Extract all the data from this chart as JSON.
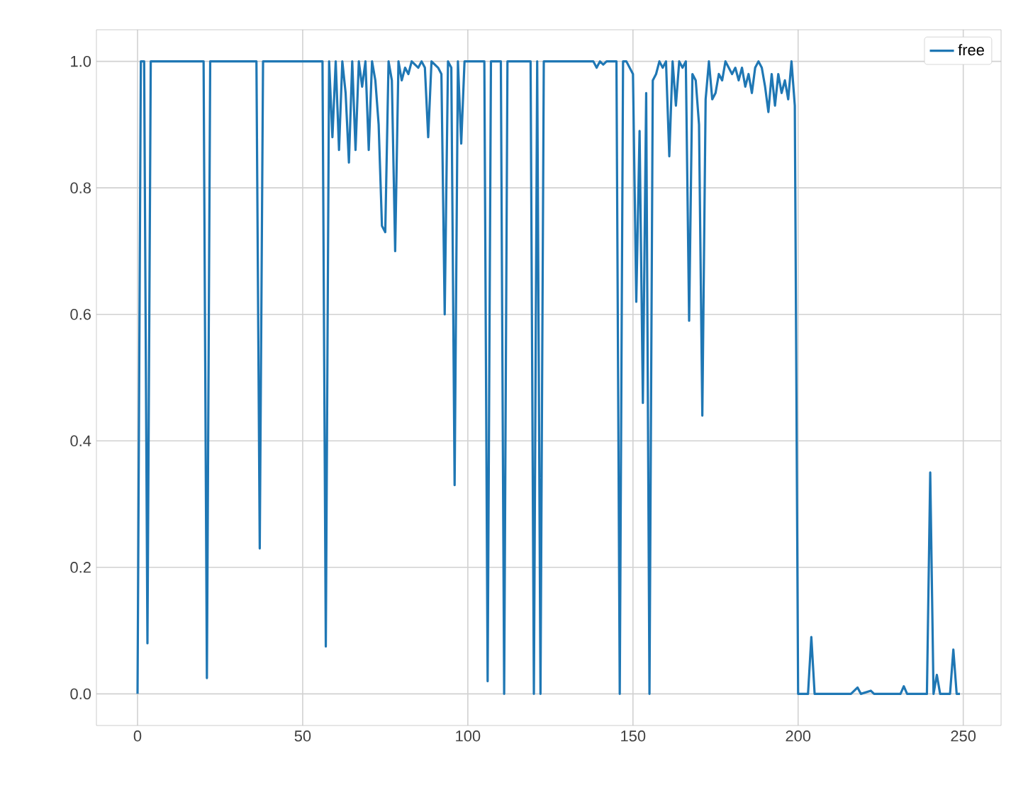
{
  "chart_data": {
    "type": "line",
    "xlim": [
      -12.45,
      261.45
    ],
    "ylim": [
      -0.05,
      1.05
    ],
    "xticks": [
      0,
      50,
      100,
      150,
      200,
      250
    ],
    "yticks": [
      {
        "value": 0,
        "label": "0.0"
      },
      {
        "value": 0.2,
        "label": "0.2"
      },
      {
        "value": 0.4,
        "label": "0.4"
      },
      {
        "value": 0.6,
        "label": "0.6"
      },
      {
        "value": 0.8,
        "label": "0.8"
      },
      {
        "value": 1,
        "label": "1.0"
      }
    ],
    "grid": true,
    "legend": "top right",
    "marker": "none",
    "line_style": "solid",
    "series": [
      {
        "name": "free",
        "color": "#1f77b4",
        "x": [
          0,
          1,
          2,
          3,
          4,
          20,
          21,
          22,
          36,
          37,
          38,
          56,
          57,
          58,
          59,
          60,
          61,
          62,
          63,
          64,
          65,
          66,
          67,
          68,
          69,
          70,
          71,
          72,
          73,
          74,
          75,
          76,
          77,
          78,
          79,
          80,
          81,
          82,
          83,
          85,
          86,
          87,
          88,
          89,
          91,
          92,
          93,
          94,
          95,
          96,
          97,
          98,
          99,
          105,
          106,
          107,
          110,
          111,
          112,
          119,
          120,
          121,
          122,
          123,
          138,
          139,
          140,
          141,
          142,
          145,
          146,
          147,
          148,
          150,
          151,
          152,
          153,
          154,
          155,
          156,
          157,
          158,
          159,
          160,
          161,
          162,
          163,
          164,
          165,
          166,
          167,
          168,
          169,
          170,
          171,
          172,
          173,
          174,
          175,
          176,
          177,
          178,
          179,
          180,
          181,
          182,
          183,
          184,
          185,
          186,
          187,
          188,
          189,
          190,
          191,
          192,
          193,
          194,
          195,
          196,
          197,
          198,
          199,
          200,
          203,
          204,
          205,
          216,
          218,
          219,
          222,
          223,
          231,
          232,
          233,
          239,
          240,
          241,
          242,
          243,
          246,
          247,
          248,
          249
        ],
        "values": [
          0,
          1,
          1,
          0.08,
          1,
          1,
          0.025,
          1,
          1,
          0.23,
          1,
          1,
          0.075,
          1,
          0.88,
          1,
          0.86,
          1,
          0.95,
          0.84,
          1,
          0.86,
          1,
          0.96,
          1,
          0.86,
          1,
          0.97,
          0.9,
          0.74,
          0.73,
          1,
          0.97,
          0.7,
          1,
          0.97,
          0.99,
          0.98,
          1,
          0.99,
          1,
          0.99,
          0.88,
          1,
          0.99,
          0.98,
          0.6,
          1,
          0.99,
          0.33,
          1,
          0.87,
          1,
          1,
          0.02,
          1,
          1,
          0,
          1,
          1,
          0,
          1,
          0,
          1,
          1,
          0.99,
          1,
          0.995,
          1,
          1,
          0,
          1,
          1,
          0.98,
          0.62,
          0.89,
          0.46,
          0.95,
          0,
          0.97,
          0.98,
          1,
          0.99,
          1,
          0.85,
          1,
          0.93,
          1,
          0.99,
          1,
          0.59,
          0.98,
          0.97,
          0.9,
          0.44,
          0.94,
          1,
          0.94,
          0.95,
          0.98,
          0.97,
          1,
          0.99,
          0.98,
          0.99,
          0.97,
          0.99,
          0.96,
          0.98,
          0.95,
          0.99,
          1,
          0.99,
          0.96,
          0.92,
          0.98,
          0.93,
          0.98,
          0.95,
          0.97,
          0.94,
          1,
          0.93,
          0,
          0,
          0.09,
          0,
          0,
          0.01,
          0,
          0.005,
          0,
          0,
          0.012,
          0,
          0,
          0.35,
          0,
          0.03,
          0,
          0,
          0.07,
          0,
          0
        ]
      }
    ]
  }
}
